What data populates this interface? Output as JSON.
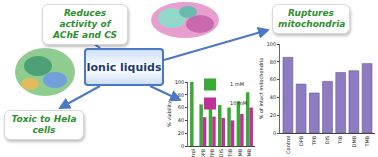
{
  "nodes": [
    {
      "label": "Reduces activity of AChE and CS"
    },
    {
      "label": "Ionic liquids"
    },
    {
      "label": "Ruptures mitochondria"
    },
    {
      "label": "Toxic to Hela cells"
    }
  ],
  "chart_data": [
    {
      "type": "bar",
      "title": "",
      "y_label": "% viability",
      "categories": [
        "Control",
        "DPB",
        "TPB",
        "DIS",
        "TIB",
        "DMB",
        "TMB"
      ],
      "series": [
        {
          "name": "1 mM",
          "color": "#3aaa35",
          "values": [
            100,
            65,
            66,
            64,
            60,
            70,
            84
          ]
        },
        {
          "name": "10 mM",
          "color": "#c0309a",
          "values": [
            null,
            45,
            46,
            44,
            40,
            50,
            60
          ]
        }
      ],
      "ylim": [
        0,
        100
      ],
      "yticks": [
        0,
        20,
        40,
        60,
        80,
        100
      ],
      "grid": false,
      "legend": "top"
    },
    {
      "type": "bar",
      "title": "",
      "y_label": "% of intact mitochondria",
      "categories": [
        "Control",
        "DPB",
        "TPB",
        "DIS",
        "TIB",
        "DMB",
        "TMB"
      ],
      "values": [
        85,
        55,
        45,
        58,
        68,
        70,
        78
      ],
      "color": "#8e7cc3",
      "ylim": [
        0,
        100
      ],
      "yticks": [
        0,
        20,
        40,
        60,
        80,
        100
      ],
      "grid": false
    }
  ]
}
